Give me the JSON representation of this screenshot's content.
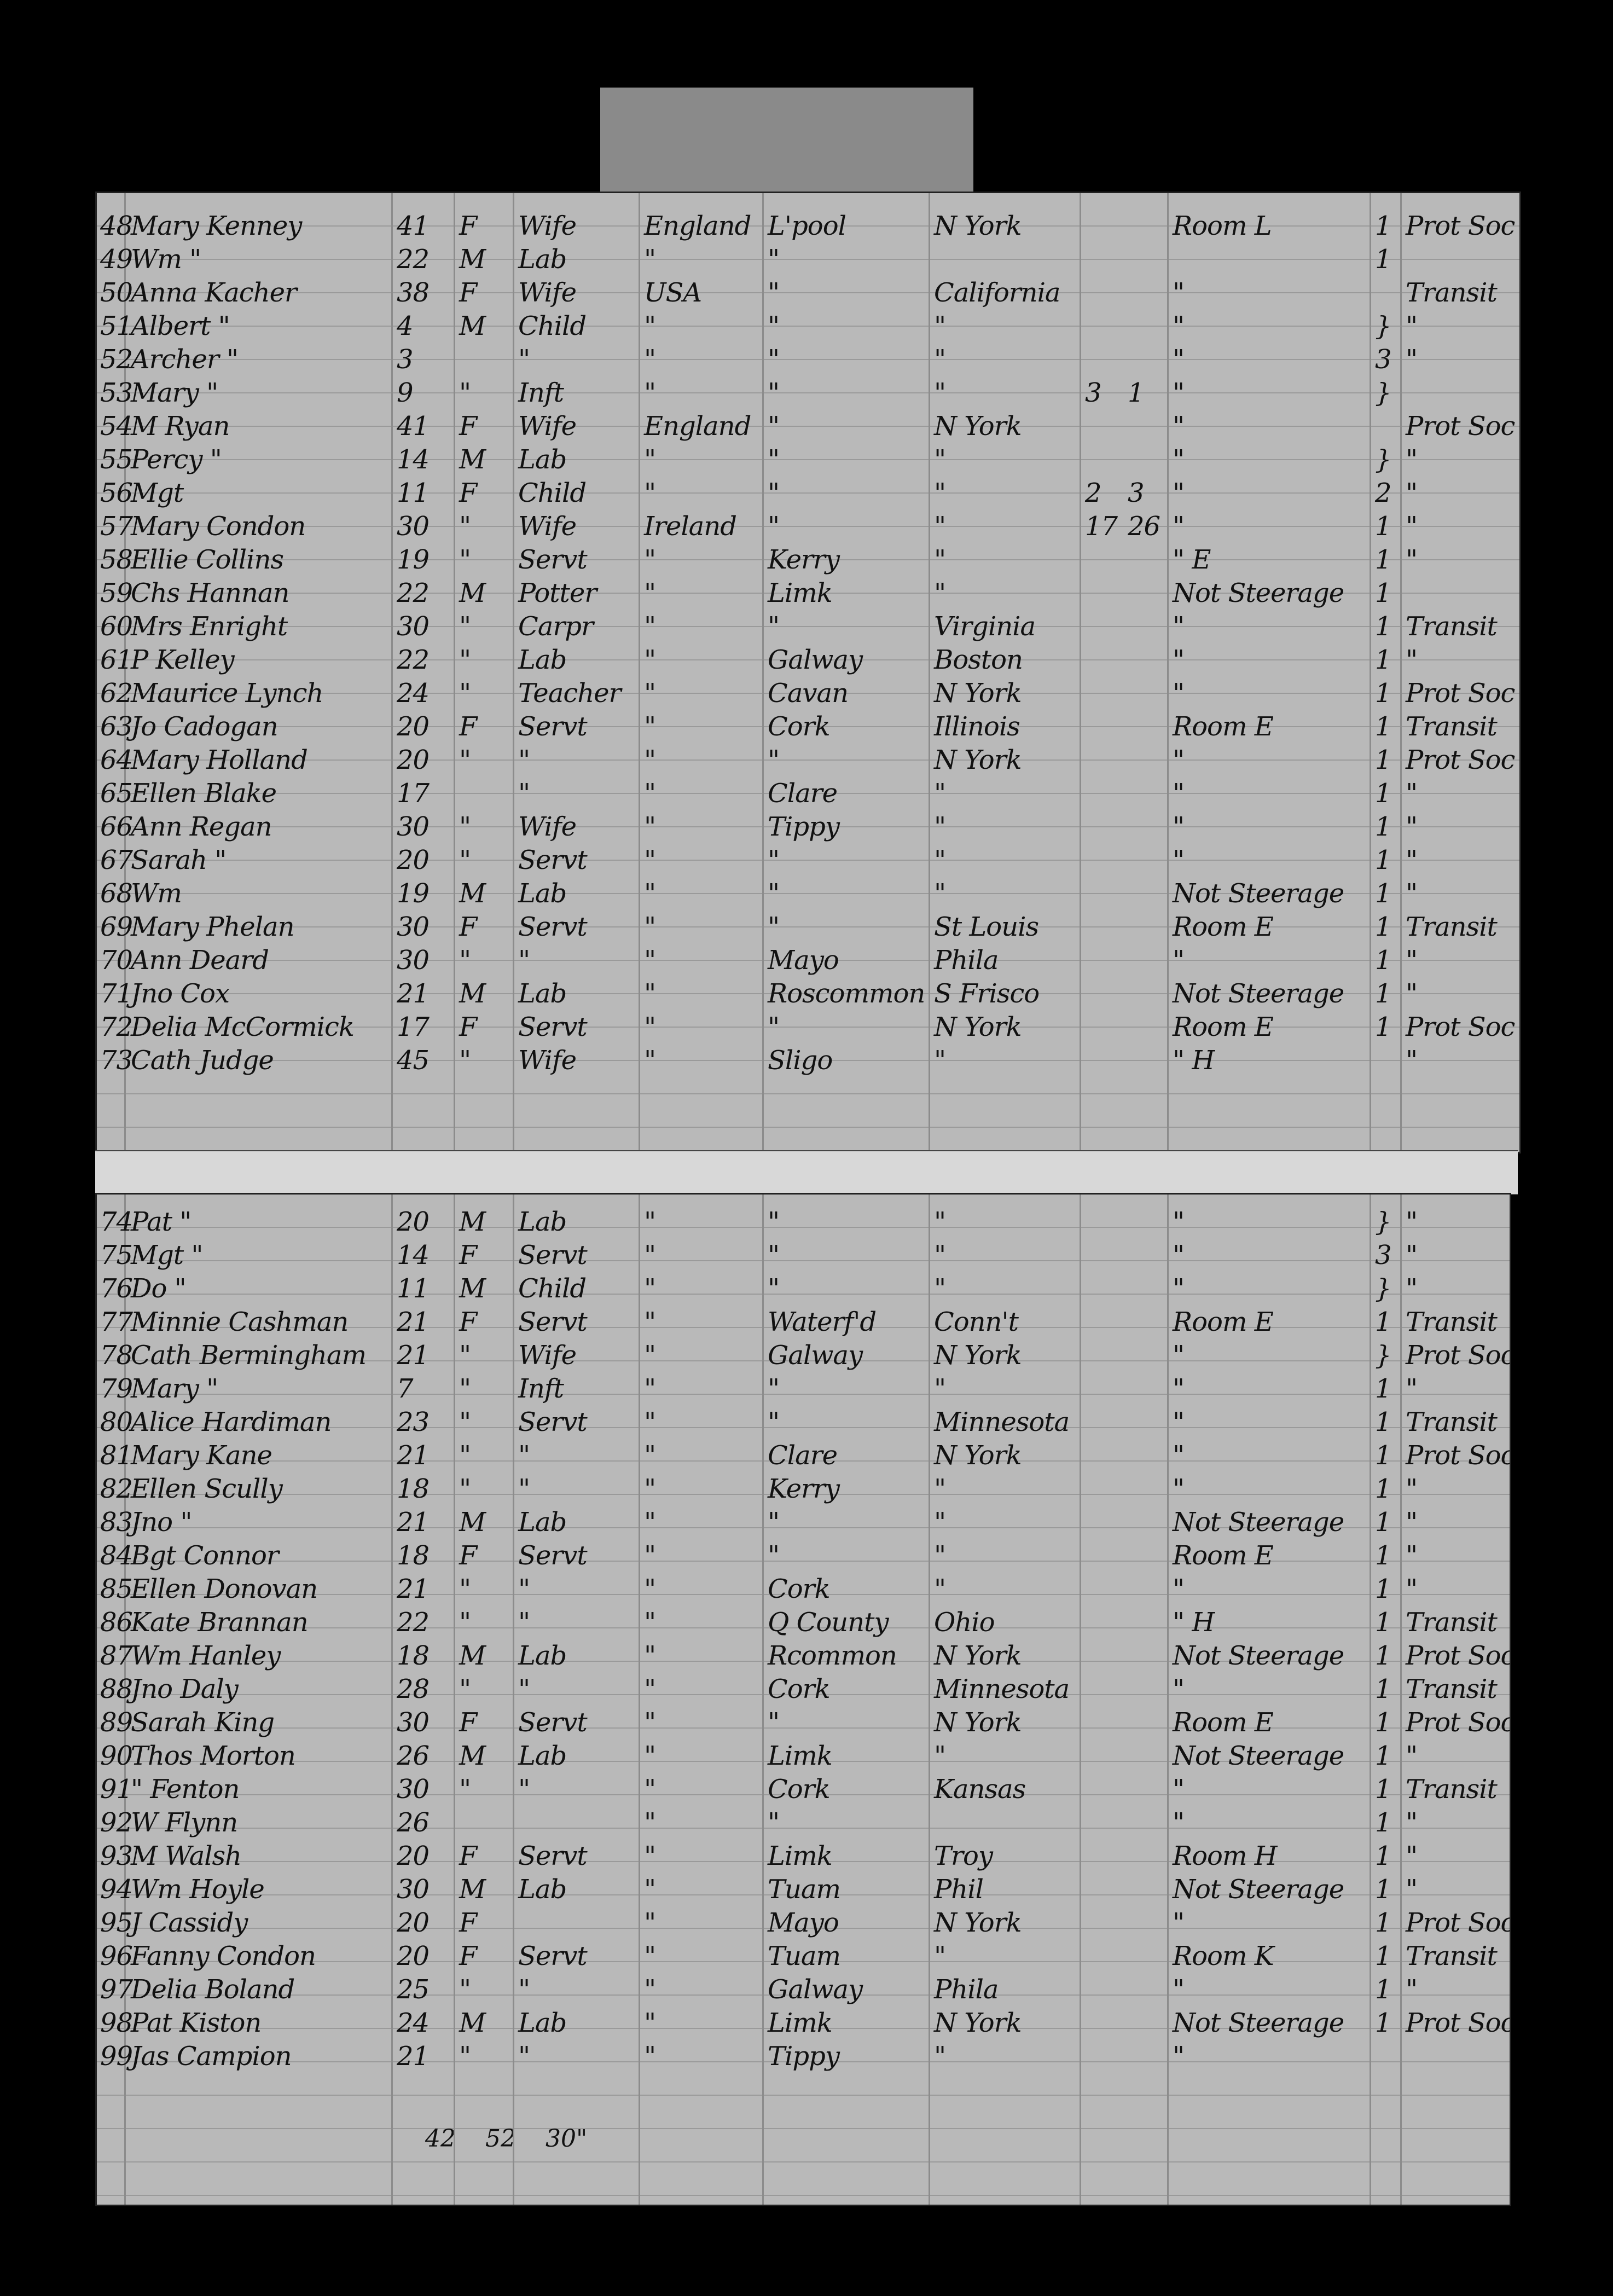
{
  "upper_page": {
    "rows": [
      [
        "48",
        "Mary Kenney",
        "41",
        "F",
        "Wife",
        "England",
        "L'pool",
        "N York",
        "",
        "",
        "Room L",
        "1",
        "Prot Soc"
      ],
      [
        "49",
        "Wm    \"",
        "22",
        "M",
        "Lab",
        "\"",
        "\"",
        "",
        "",
        "",
        "",
        "1",
        ""
      ],
      [
        "50",
        "Anna Kacher",
        "38",
        "F",
        "Wife",
        "USA",
        "\"",
        "California",
        "",
        "",
        "\"",
        "",
        "Transit"
      ],
      [
        "51",
        "Albert  \"",
        "4",
        "M",
        "Child",
        "\"",
        "\"",
        "\"",
        "",
        "",
        "\"",
        "}",
        "\""
      ],
      [
        "52",
        "Archer  \"",
        "3",
        "",
        "\"",
        "\"",
        "\"",
        "\"",
        "",
        "",
        "\"",
        "3",
        "\""
      ],
      [
        "53",
        "Mary   \"",
        "9",
        "\"",
        "Inft",
        "\"",
        "\"",
        "\"",
        "3",
        "1",
        "\"",
        "}",
        ""
      ],
      [
        "54",
        "M Ryan",
        "41",
        "F",
        "Wife",
        "England",
        "\"",
        "N York",
        "",
        "",
        "\"",
        "",
        "Prot Soc"
      ],
      [
        "55",
        "Percy  \"",
        "14",
        "M",
        "Lab",
        "\"",
        "\"",
        "\"",
        "",
        "",
        "\"",
        "}",
        "\""
      ],
      [
        "56",
        "Mgt",
        "11",
        "F",
        "Child",
        "\"",
        "\"",
        "\"",
        "2",
        "3",
        "\"",
        "2",
        "\""
      ],
      [
        "57",
        "Mary Condon",
        "30",
        "\"",
        "Wife",
        "Ireland",
        "\"",
        "\"",
        "17",
        "26",
        "\"",
        "1",
        "\""
      ],
      [
        "58",
        "Ellie Collins",
        "19",
        "\"",
        "Servt",
        "\"",
        "Kerry",
        "\"",
        "",
        "",
        "\"  E",
        "1",
        "\""
      ],
      [
        "59",
        "Chs Hannan",
        "22",
        "M",
        "Potter",
        "\"",
        "Limk",
        "\"",
        "",
        "",
        "Not Steerage",
        "1",
        ""
      ],
      [
        "60",
        "Mrs Enright",
        "30",
        "\"",
        "Carpr",
        "\"",
        "\"",
        "Virginia",
        "",
        "",
        "\"",
        "1",
        "Transit"
      ],
      [
        "61",
        "P Kelley",
        "22",
        "\"",
        "Lab",
        "\"",
        "Galway",
        "Boston",
        "",
        "",
        "\"",
        "1",
        "\""
      ],
      [
        "62",
        "Maurice Lynch",
        "24",
        "\"",
        "Teacher",
        "\"",
        "Cavan",
        "N York",
        "",
        "",
        "\"",
        "1",
        "Prot Soc"
      ],
      [
        "63",
        "Jo Cadogan",
        "20",
        "F",
        "Servt",
        "\"",
        "Cork",
        "Illinois",
        "",
        "",
        "Room E",
        "1",
        "Transit"
      ],
      [
        "64",
        "Mary Holland",
        "20",
        "\"",
        "\"",
        "\"",
        "\"",
        "N York",
        "",
        "",
        "\"",
        "1",
        "Prot Soc"
      ],
      [
        "65",
        "Ellen Blake",
        "17",
        "",
        "\"",
        "\"",
        "Clare",
        "\"",
        "",
        "",
        "\"",
        "1",
        "\""
      ],
      [
        "66",
        "Ann Regan",
        "30",
        "\"",
        "Wife",
        "\"",
        "Tippy",
        "\"",
        "",
        "",
        "\"",
        "1",
        "\""
      ],
      [
        "67",
        "Sarah  \"",
        "20",
        "\"",
        "Servt",
        "\"",
        "\"",
        "\"",
        "",
        "",
        "\"",
        "1",
        "\""
      ],
      [
        "68",
        "Wm",
        "19",
        "M",
        "Lab",
        "\"",
        "\"",
        "\"",
        "",
        "",
        "Not Steerage",
        "1",
        "\""
      ],
      [
        "69",
        "Mary Phelan",
        "30",
        "F",
        "Servt",
        "\"",
        "\"",
        "St Louis",
        "",
        "",
        "Room E",
        "1",
        "Transit"
      ],
      [
        "70",
        "Ann Deard",
        "30",
        "\"",
        "\"",
        "\"",
        "Mayo",
        "Phila",
        "",
        "",
        "\"",
        "1",
        "\""
      ],
      [
        "71",
        "Jno Cox",
        "21",
        "M",
        "Lab",
        "\"",
        "Roscommon",
        "S Frisco",
        "",
        "",
        "Not Steerage",
        "1",
        "\""
      ],
      [
        "72",
        "Delia McCormick",
        "17",
        "F",
        "Servt",
        "\"",
        "\"",
        "N York",
        "",
        "",
        "Room E",
        "1",
        "Prot Soc"
      ],
      [
        "73",
        "Cath Judge",
        "45",
        "\"",
        "Wife",
        "\"",
        "Sligo",
        "\"",
        "",
        "",
        "\"  H",
        "",
        "\""
      ]
    ]
  },
  "lower_page": {
    "rows": [
      [
        "74",
        "Pat    \"",
        "20",
        "M",
        "Lab",
        "\"",
        "\"",
        "\"",
        "",
        "",
        "\"",
        "}",
        "\""
      ],
      [
        "75",
        "Mgt    \"",
        "14",
        "F",
        "Servt",
        "\"",
        "\"",
        "\"",
        "",
        "",
        "\"",
        "3",
        "\""
      ],
      [
        "76",
        "Do     \"",
        "11",
        "M",
        "Child",
        "\"",
        "\"",
        "\"",
        "",
        "",
        "\"",
        "}",
        "\""
      ],
      [
        "77",
        "Minnie Cashman",
        "21",
        "F",
        "Servt",
        "\"",
        "Waterf'd",
        "Conn't",
        "",
        "",
        "Room E",
        "1",
        "Transit"
      ],
      [
        "78",
        "Cath Bermingham",
        "21",
        "\"",
        "Wife",
        "\"",
        "Galway",
        "N York",
        "",
        "",
        "\"",
        "}",
        "Prot Soc"
      ],
      [
        "79",
        "Mary  \"",
        "7",
        "\"",
        "Inft",
        "\"",
        "\"",
        "\"",
        "",
        "",
        "\"",
        "1",
        "\""
      ],
      [
        "80",
        "Alice Hardiman",
        "23",
        "\"",
        "Servt",
        "\"",
        "\"",
        "Minnesota",
        "",
        "",
        "\"",
        "1",
        "Transit"
      ],
      [
        "81",
        "Mary Kane",
        "21",
        "\"",
        "\"",
        "\"",
        "Clare",
        "N York",
        "",
        "",
        "\"",
        "1",
        "Prot Soc"
      ],
      [
        "82",
        "Ellen Scully",
        "18",
        "\"",
        "\"",
        "\"",
        "Kerry",
        "\"",
        "",
        "",
        "\"",
        "1",
        "\""
      ],
      [
        "83",
        "Jno    \"",
        "21",
        "M",
        "Lab",
        "\"",
        "\"",
        "\"",
        "",
        "",
        "Not Steerage",
        "1",
        "\""
      ],
      [
        "84",
        "Bgt Connor",
        "18",
        "F",
        "Servt",
        "\"",
        "\"",
        "\"",
        "",
        "",
        "Room E",
        "1",
        "\""
      ],
      [
        "85",
        "Ellen Donovan",
        "21",
        "\"",
        "\"",
        "\"",
        "Cork",
        "\"",
        "",
        "",
        "\"",
        "1",
        "\""
      ],
      [
        "86",
        "Kate Brannan",
        "22",
        "\"",
        "\"",
        "\"",
        "Q County",
        "Ohio",
        "",
        "",
        "\"  H",
        "1",
        "Transit"
      ],
      [
        "87",
        "Wm Hanley",
        "18",
        "M",
        "Lab",
        "\"",
        "Rcommon",
        "N York",
        "",
        "",
        "Not Steerage",
        "1",
        "Prot Soc"
      ],
      [
        "88",
        "Jno Daly",
        "28",
        "\"",
        "\"",
        "\"",
        "Cork",
        "Minnesota",
        "",
        "",
        "\"",
        "1",
        "Transit"
      ],
      [
        "89",
        "Sarah King",
        "30",
        "F",
        "Servt",
        "\"",
        "\"",
        "N York",
        "",
        "",
        "Room E",
        "1",
        "Prot Soc"
      ],
      [
        "90",
        "Thos Morton",
        "26",
        "M",
        "Lab",
        "\"",
        "Limk",
        "\"",
        "",
        "",
        "Not Steerage",
        "1",
        "\""
      ],
      [
        "91",
        "\"  Fenton",
        "30",
        "\"",
        "\"",
        "\"",
        "Cork",
        "Kansas",
        "",
        "",
        "\"",
        "1",
        "Transit"
      ],
      [
        "92",
        "W Flynn",
        "26",
        "",
        "",
        "\"",
        "\"",
        "",
        "",
        "",
        "\"",
        "1",
        "\""
      ],
      [
        "93",
        "M Walsh",
        "20",
        "F",
        "Servt",
        "\"",
        "Limk",
        "Troy",
        "",
        "",
        "Room H",
        "1",
        "\""
      ],
      [
        "94",
        "Wm Hoyle",
        "30",
        "M",
        "Lab",
        "\"",
        "Tuam",
        "Phil",
        "",
        "",
        "Not Steerage",
        "1",
        "\""
      ],
      [
        "95",
        "J Cassidy",
        "20",
        "F",
        "",
        "\"",
        "Mayo",
        "N York",
        "",
        "",
        "\"",
        "1",
        "Prot Soc"
      ],
      [
        "96",
        "Fanny Condon",
        "20",
        "F",
        "Servt",
        "\"",
        "Tuam",
        "\"",
        "",
        "",
        "Room K",
        "1",
        "Transit"
      ],
      [
        "97",
        "Delia Boland",
        "25",
        "\"",
        "\"",
        "\"",
        "Galway",
        "Phila",
        "",
        "",
        "\"",
        "1",
        "\""
      ],
      [
        "98",
        "Pat Kiston",
        "24",
        "M",
        "Lab",
        "\"",
        "Limk",
        "N York",
        "",
        "",
        "Not Steerage",
        "1",
        "Prot Soc"
      ],
      [
        "99",
        "Jas Campion",
        "21",
        "\"",
        "\"",
        "\"",
        "Tippy",
        "\"",
        "",
        "",
        "\"",
        "",
        ""
      ]
    ],
    "totals": [
      "42",
      "52",
      "30\""
    ]
  }
}
